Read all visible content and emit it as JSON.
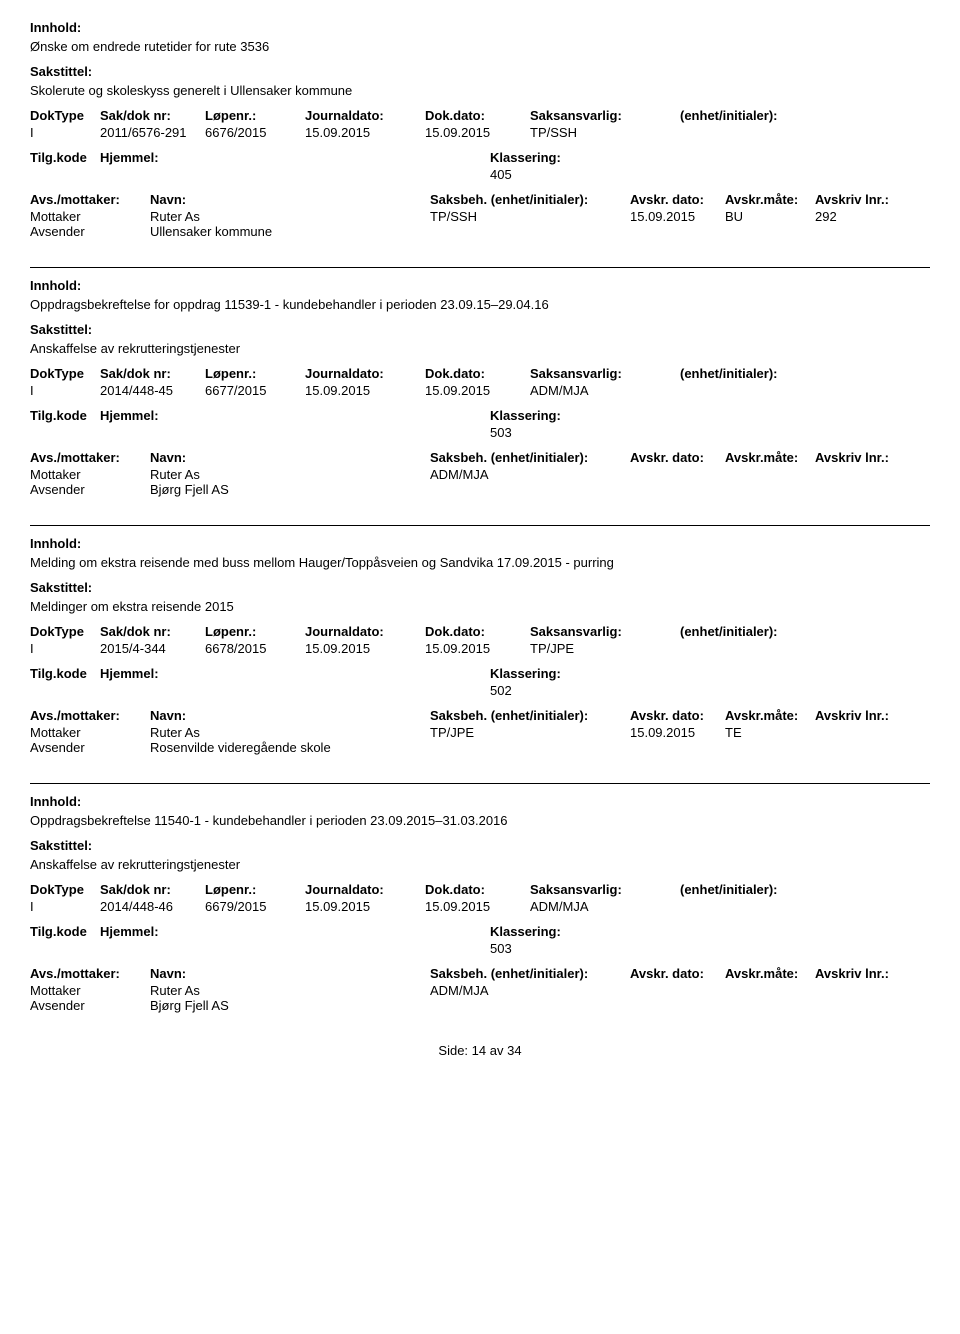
{
  "labels": {
    "innhold": "Innhold:",
    "sakstittel": "Sakstittel:",
    "doktype": "DokType",
    "sakdok": "Sak/dok nr:",
    "lopenr": "Løpenr.:",
    "journaldato": "Journaldato:",
    "dokdato": "Dok.dato:",
    "saksansvarlig": "Saksansvarlig:",
    "enhet": "(enhet/initialer):",
    "tilgkode": "Tilg.kode",
    "hjemmel": "Hjemmel:",
    "klassering": "Klassering:",
    "avsmottaker": "Avs./mottaker:",
    "navn": "Navn:",
    "saksbeh": "Saksbeh.",
    "saksbeh_enhet": "(enhet/initialer):",
    "avskrdato": "Avskr. dato:",
    "avskrmate": "Avskr.måte:",
    "avskrivlnr": "Avskriv lnr.:",
    "mottaker": "Mottaker",
    "avsender": "Avsender"
  },
  "records": [
    {
      "innhold": "Ønske om endrede rutetider for rute 3536",
      "sakstittel": "Skolerute og skoleskyss generelt i Ullensaker kommune",
      "doktype": "I",
      "sakdok": "2011/6576-291",
      "lopenr": "6676/2015",
      "journaldato": "15.09.2015",
      "dokdato": "15.09.2015",
      "saksansvarlig": "TP/SSH",
      "klassering": "405",
      "mottaker_navn": "Ruter As",
      "saksbeh_val": "TP/SSH",
      "avskr_dato": "15.09.2015",
      "avskr_mate": "BU",
      "avskr_lnr": "292",
      "avsender_navn": "Ullensaker kommune"
    },
    {
      "innhold": "Oppdragsbekreftelse for oppdrag 11539-1 - kundebehandler i perioden 23.09.15–29.04.16",
      "sakstittel": "Anskaffelse av rekrutteringstjenester",
      "doktype": "I",
      "sakdok": "2014/448-45",
      "lopenr": "6677/2015",
      "journaldato": "15.09.2015",
      "dokdato": "15.09.2015",
      "saksansvarlig": "ADM/MJA",
      "klassering": "503",
      "mottaker_navn": "Ruter As",
      "saksbeh_val": "ADM/MJA",
      "avskr_dato": "",
      "avskr_mate": "",
      "avskr_lnr": "",
      "avsender_navn": "Bjørg Fjell AS"
    },
    {
      "innhold": "Melding om ekstra reisende med buss mellom Hauger/Toppåsveien og Sandvika 17.09.2015 - purring",
      "sakstittel": "Meldinger om ekstra reisende 2015",
      "doktype": "I",
      "sakdok": "2015/4-344",
      "lopenr": "6678/2015",
      "journaldato": "15.09.2015",
      "dokdato": "15.09.2015",
      "saksansvarlig": "TP/JPE",
      "klassering": "502",
      "mottaker_navn": "Ruter As",
      "saksbeh_val": "TP/JPE",
      "avskr_dato": "15.09.2015",
      "avskr_mate": "TE",
      "avskr_lnr": "",
      "avsender_navn": "Rosenvilde videregående skole"
    },
    {
      "innhold": "Oppdragsbekreftelse 11540-1 - kundebehandler i perioden 23.09.2015–31.03.2016",
      "sakstittel": "Anskaffelse av rekrutteringstjenester",
      "doktype": "I",
      "sakdok": "2014/448-46",
      "lopenr": "6679/2015",
      "journaldato": "15.09.2015",
      "dokdato": "15.09.2015",
      "saksansvarlig": "ADM/MJA",
      "klassering": "503",
      "mottaker_navn": "Ruter As",
      "saksbeh_val": "ADM/MJA",
      "avskr_dato": "",
      "avskr_mate": "",
      "avskr_lnr": "",
      "avsender_navn": "Bjørg Fjell AS"
    }
  ],
  "footer": {
    "side_label": "Side:",
    "page": "14",
    "av": "av",
    "total": "34"
  }
}
